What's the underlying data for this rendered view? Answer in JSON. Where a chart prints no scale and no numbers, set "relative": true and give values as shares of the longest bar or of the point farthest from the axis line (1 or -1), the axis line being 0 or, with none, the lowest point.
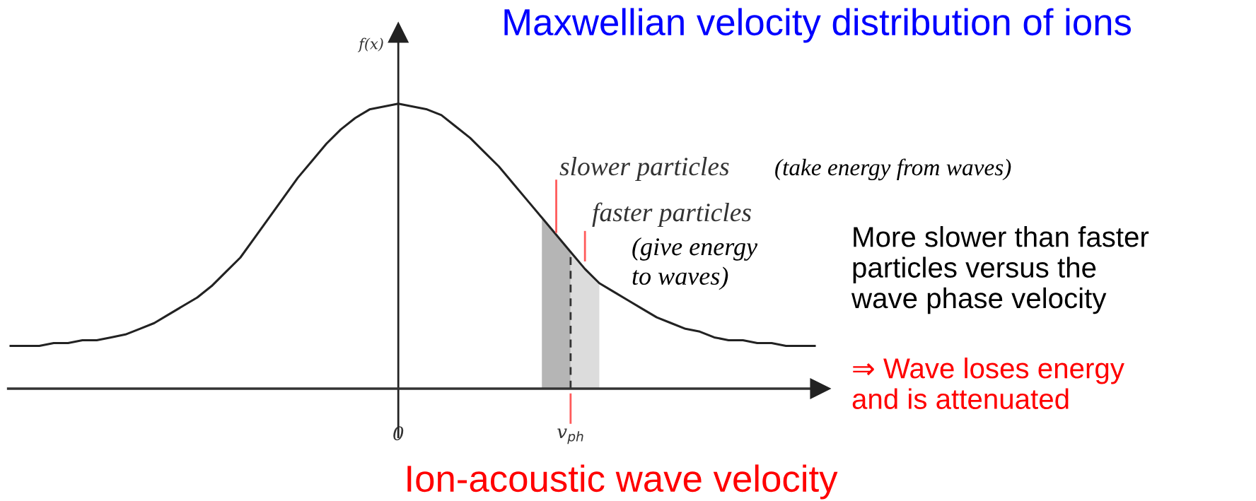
{
  "chart_data": {
    "type": "line",
    "relative": true,
    "title": "Maxwellian velocity distribution of ions",
    "xlabel": "Ion-acoustic wave velocity",
    "ylabel": "f(x)",
    "categories": [
      null,
      null,
      null,
      null,
      null,
      null,
      null,
      null,
      null,
      null,
      null,
      null,
      null,
      null,
      null,
      null,
      null,
      null,
      null,
      null,
      null,
      null,
      null,
      null,
      null,
      null,
      null,
      "0",
      null,
      null,
      null,
      null,
      null,
      null,
      null,
      null,
      null,
      null,
      null,
      "v$_{ph}$",
      null,
      null,
      null,
      null,
      null,
      null,
      null,
      null,
      null,
      null,
      null,
      null,
      null,
      null,
      null,
      null,
      null
    ],
    "series": [
      {
        "type": "area",
        "color": "#b5b5b5",
        "values": [
          null,
          null,
          null,
          null,
          null,
          null,
          null,
          null,
          null,
          null,
          null,
          null,
          null,
          null,
          null,
          null,
          null,
          null,
          null,
          null,
          null,
          null,
          null,
          null,
          null,
          null,
          null,
          null,
          null,
          null,
          null,
          null,
          null,
          null,
          null,
          null,
          null,
          0.6,
          0.54,
          0.48,
          null,
          null,
          null,
          null,
          null,
          null,
          null,
          null,
          null,
          null,
          null,
          null,
          null,
          null,
          null,
          null,
          null
        ]
      },
      {
        "type": "area",
        "color": "#dcdcdc",
        "values": [
          null,
          null,
          null,
          null,
          null,
          null,
          null,
          null,
          null,
          null,
          null,
          null,
          null,
          null,
          null,
          null,
          null,
          null,
          null,
          null,
          null,
          null,
          null,
          null,
          null,
          null,
          null,
          null,
          null,
          null,
          null,
          null,
          null,
          null,
          null,
          null,
          null,
          null,
          null,
          0.48,
          0.42,
          0.37,
          null,
          null,
          null,
          null,
          null,
          null,
          null,
          null,
          null,
          null,
          null,
          null,
          null,
          null,
          null
        ]
      },
      {
        "color": "#222222",
        "values": [
          0.15,
          0.15,
          0.15,
          0.16,
          0.16,
          0.17,
          0.17,
          0.18,
          0.19,
          0.21,
          0.23,
          0.26,
          0.29,
          0.32,
          0.36,
          0.41,
          0.46,
          0.53,
          0.6,
          0.67,
          0.74,
          0.8,
          0.86,
          0.91,
          0.95,
          0.98,
          0.99,
          1.0,
          0.99,
          0.98,
          0.96,
          0.92,
          0.88,
          0.83,
          0.78,
          0.72,
          0.66,
          0.6,
          0.54,
          0.48,
          0.42,
          0.37,
          0.34,
          0.31,
          0.28,
          0.25,
          0.23,
          0.21,
          0.2,
          0.18,
          0.17,
          0.17,
          0.16,
          0.16,
          0.15,
          0.15,
          0.15
        ]
      }
    ],
    "annotations": [
      "slower particles",
      "(take energy from waves)",
      "faster particles",
      "(give energy\nto waves)",
      "More slower than faster\nparticles versus the\nwave phase velocity",
      "⇒ Wave loses energy\nand is attenuated"
    ]
  }
}
